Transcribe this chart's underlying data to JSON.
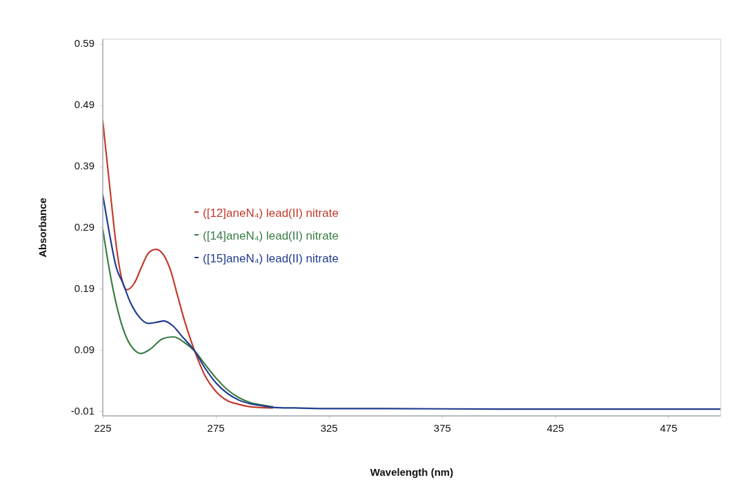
{
  "chart_data": {
    "type": "line",
    "xlabel": "Wavelength (nm)",
    "ylabel": "Absorbance",
    "xlim": [
      225,
      498
    ],
    "xticks": [
      225,
      275,
      325,
      375,
      425,
      475
    ],
    "ylim": [
      -0.017,
      0.598
    ],
    "yticks": [
      -0.01,
      0.09,
      0.19,
      0.29,
      0.39,
      0.49,
      0.59
    ],
    "grid": false,
    "legend": "left",
    "marker": "none",
    "line_style": "solid",
    "series": [
      {
        "name": "([12]aneN₄) lead(II) nitrate",
        "color": "#c23b2c",
        "x": [
          225,
          228,
          231,
          233.5,
          235.6,
          239,
          242,
          245,
          248.6,
          252,
          255,
          258,
          261,
          265.6,
          270,
          275,
          280,
          285,
          290,
          300
        ],
        "values": [
          0.465,
          0.36,
          0.26,
          0.205,
          0.189,
          0.2,
          0.225,
          0.248,
          0.255,
          0.245,
          0.22,
          0.18,
          0.14,
          0.089,
          0.05,
          0.023,
          0.008,
          0.002,
          -0.002,
          -0.004
        ]
      },
      {
        "name": "([14]aneN₄) lead(II) nitrate",
        "color": "#3a7d44",
        "x": [
          225,
          228,
          231,
          234,
          237,
          241.8,
          246,
          251,
          256.4,
          261,
          265.6,
          270,
          275,
          280,
          285,
          290,
          295,
          300
        ],
        "values": [
          0.288,
          0.22,
          0.165,
          0.125,
          0.1,
          0.085,
          0.092,
          0.108,
          0.112,
          0.103,
          0.089,
          0.068,
          0.045,
          0.026,
          0.013,
          0.005,
          0.001,
          -0.002
        ]
      },
      {
        "name": "([15]aneN₄) lead(II) nitrate",
        "color": "#1f3b8f",
        "x": [
          225,
          228,
          231,
          233.9,
          237,
          241,
          245,
          249,
          252,
          256,
          260,
          265.6,
          270,
          275,
          280,
          285,
          290,
          295,
          300,
          310,
          325,
          350,
          400,
          450,
          498
        ],
        "values": [
          0.344,
          0.28,
          0.225,
          0.2,
          0.17,
          0.145,
          0.134,
          0.136,
          0.138,
          0.13,
          0.113,
          0.089,
          0.062,
          0.037,
          0.02,
          0.009,
          0.003,
          0,
          -0.003,
          -0.004,
          -0.005,
          -0.005,
          -0.006,
          -0.006,
          -0.006
        ]
      }
    ]
  }
}
